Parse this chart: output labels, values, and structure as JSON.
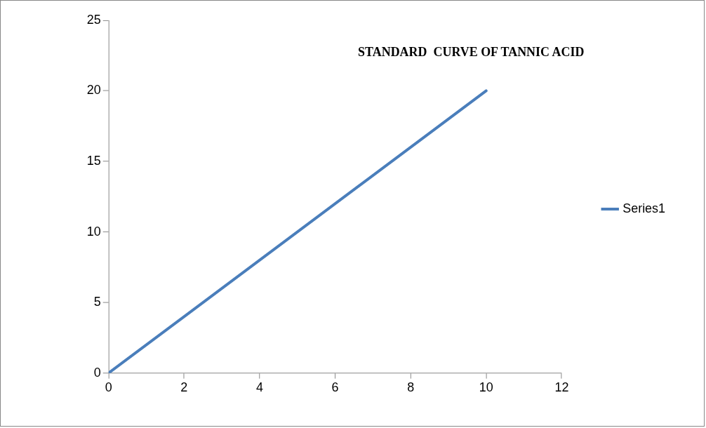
{
  "chart_data": {
    "type": "line",
    "title": "STANDARD  CURVE OF TANNIC ACID",
    "x": [
      0,
      10
    ],
    "series": [
      {
        "name": "Series1",
        "color": "#4a7ebb",
        "values": [
          0,
          20
        ]
      }
    ],
    "xlim": [
      0,
      12
    ],
    "xticks": [
      0,
      2,
      4,
      6,
      8,
      10,
      12
    ],
    "ylim": [
      0,
      25
    ],
    "yticks": [
      0,
      5,
      10,
      15,
      20,
      25
    ],
    "grid": false,
    "legend": "right",
    "marker": "none",
    "line_style": "solid"
  }
}
